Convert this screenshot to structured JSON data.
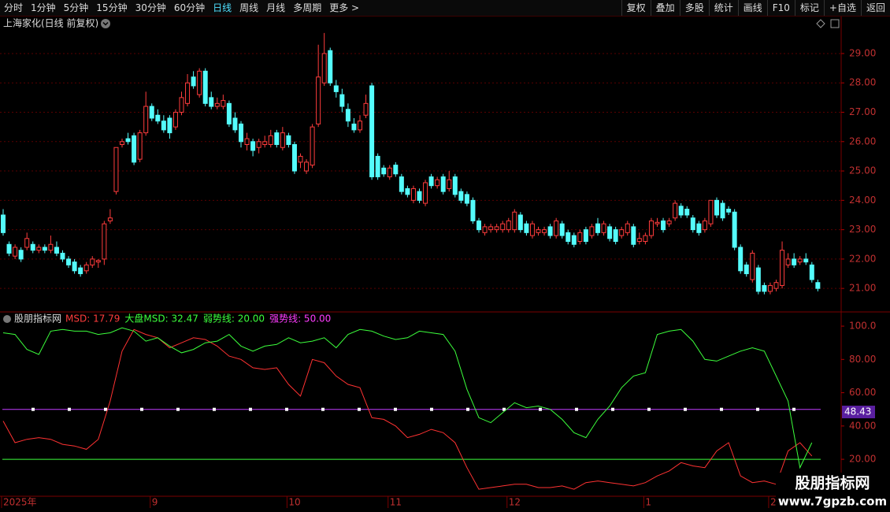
{
  "chart_data": {
    "type": "candlestick",
    "toolbar": {
      "left": [
        "分时",
        "1分钟",
        "5分钟",
        "15分钟",
        "30分钟",
        "60分钟",
        "日线",
        "周线",
        "月线",
        "多周期",
        "更多 >"
      ],
      "active_index": 6,
      "right": [
        "复权",
        "叠加",
        "多股",
        "统计",
        "画线",
        "F10",
        "标记",
        "+自选",
        "返回"
      ]
    },
    "title": "上海家化(日线 前复权)",
    "up_color": "#ff3c3c",
    "down_color": "#54fcfc",
    "ylim": [
      20.28,
      29.75
    ],
    "yticks": [
      {
        "value": 21,
        "label": "21.00"
      },
      {
        "value": 22,
        "label": "22.00"
      },
      {
        "value": 23,
        "label": "23.00"
      },
      {
        "value": 24,
        "label": "24.00"
      },
      {
        "value": 25,
        "label": "25.00"
      },
      {
        "value": 26,
        "label": "26.00"
      },
      {
        "value": 27,
        "label": "27.00"
      },
      {
        "value": 28,
        "label": "28.00"
      },
      {
        "value": 29,
        "label": "29.00"
      }
    ],
    "grid": true,
    "candles": [
      [
        23.5,
        23.7,
        22.8,
        22.9
      ],
      [
        22.5,
        22.6,
        22.1,
        22.2
      ],
      [
        22.1,
        22.5,
        22.0,
        22.4
      ],
      [
        22.3,
        22.4,
        21.9,
        22.0
      ],
      [
        22.4,
        22.9,
        22.3,
        22.7
      ],
      [
        22.5,
        22.6,
        22.2,
        22.3
      ],
      [
        22.3,
        22.5,
        22.2,
        22.4
      ],
      [
        22.4,
        22.5,
        22.2,
        22.3
      ],
      [
        22.3,
        22.8,
        22.2,
        22.5
      ],
      [
        22.4,
        22.6,
        22.1,
        22.2
      ],
      [
        22.2,
        22.3,
        21.9,
        22.0
      ],
      [
        22.0,
        22.1,
        21.7,
        21.8
      ],
      [
        21.9,
        22.0,
        21.5,
        21.6
      ],
      [
        21.7,
        21.8,
        21.4,
        21.5
      ],
      [
        21.6,
        21.9,
        21.5,
        21.8
      ],
      [
        21.8,
        22.1,
        21.7,
        22.0
      ],
      [
        21.9,
        22.0,
        21.7,
        21.95
      ],
      [
        22.0,
        23.3,
        21.8,
        23.2
      ],
      [
        23.3,
        23.7,
        23.2,
        23.4
      ],
      [
        24.3,
        25.8,
        24.2,
        25.8
      ],
      [
        25.9,
        26.1,
        25.8,
        26.0
      ],
      [
        26.1,
        26.3,
        25.9,
        26.0
      ],
      [
        26.2,
        26.3,
        25.2,
        25.3
      ],
      [
        25.4,
        26.4,
        25.3,
        26.3
      ],
      [
        26.3,
        27.7,
        26.2,
        27.2
      ],
      [
        27.2,
        27.3,
        26.7,
        26.8
      ],
      [
        26.9,
        27.1,
        26.6,
        26.7
      ],
      [
        26.7,
        26.9,
        26.3,
        26.4
      ],
      [
        26.8,
        26.9,
        26.1,
        26.3
      ],
      [
        26.5,
        27.1,
        26.4,
        27.0
      ],
      [
        27.0,
        27.7,
        26.9,
        27.5
      ],
      [
        27.3,
        28.3,
        27.2,
        28.0
      ],
      [
        28.2,
        28.4,
        27.8,
        27.9
      ],
      [
        27.6,
        28.5,
        27.5,
        28.4
      ],
      [
        28.4,
        28.5,
        27.2,
        27.3
      ],
      [
        27.5,
        27.7,
        27.1,
        27.2
      ],
      [
        27.2,
        27.5,
        27.1,
        27.3
      ],
      [
        27.2,
        27.6,
        27.1,
        27.4
      ],
      [
        27.3,
        27.4,
        26.5,
        26.6
      ],
      [
        26.8,
        27.0,
        26.3,
        26.4
      ],
      [
        26.6,
        26.7,
        25.8,
        26.0
      ],
      [
        25.9,
        26.3,
        25.7,
        26.1
      ],
      [
        26.0,
        26.1,
        25.5,
        25.7
      ],
      [
        25.8,
        26.1,
        25.6,
        26.0
      ],
      [
        25.9,
        26.2,
        25.8,
        26.0
      ],
      [
        25.9,
        26.4,
        25.8,
        26.2
      ],
      [
        26.3,
        26.4,
        25.8,
        25.9
      ],
      [
        25.8,
        26.5,
        25.7,
        26.3
      ],
      [
        26.2,
        26.3,
        25.8,
        25.9
      ],
      [
        25.9,
        26.0,
        24.9,
        25.0
      ],
      [
        25.3,
        25.6,
        25.1,
        25.5
      ],
      [
        25.0,
        25.4,
        24.9,
        25.3
      ],
      [
        25.2,
        26.6,
        25.1,
        26.5
      ],
      [
        26.6,
        29.3,
        26.5,
        28.2
      ],
      [
        28.0,
        29.7,
        27.9,
        29.0
      ],
      [
        29.1,
        29.2,
        27.9,
        28.0
      ],
      [
        27.9,
        28.1,
        27.5,
        27.7
      ],
      [
        27.6,
        27.8,
        27.0,
        27.2
      ],
      [
        27.1,
        27.3,
        26.5,
        26.7
      ],
      [
        26.6,
        26.8,
        26.3,
        26.4
      ],
      [
        26.4,
        26.9,
        26.3,
        26.7
      ],
      [
        26.9,
        27.6,
        26.8,
        27.3
      ],
      [
        27.9,
        28.0,
        24.7,
        24.8
      ],
      [
        25.5,
        25.6,
        24.7,
        24.8
      ],
      [
        25.1,
        25.2,
        24.8,
        24.9
      ],
      [
        24.8,
        25.2,
        24.7,
        25.1
      ],
      [
        25.2,
        25.3,
        24.8,
        24.9
      ],
      [
        24.8,
        24.9,
        24.2,
        24.3
      ],
      [
        24.4,
        24.5,
        24.1,
        24.2
      ],
      [
        24.0,
        24.5,
        23.9,
        24.4
      ],
      [
        24.3,
        24.4,
        23.9,
        24.0
      ],
      [
        23.9,
        24.7,
        23.8,
        24.6
      ],
      [
        24.8,
        24.9,
        24.4,
        24.5
      ],
      [
        24.5,
        24.8,
        24.4,
        24.7
      ],
      [
        24.8,
        24.9,
        24.2,
        24.3
      ],
      [
        24.4,
        25.0,
        24.3,
        24.7
      ],
      [
        24.8,
        24.9,
        24.1,
        24.2
      ],
      [
        24.3,
        24.4,
        23.9,
        24.0
      ],
      [
        24.2,
        24.3,
        23.8,
        23.9
      ],
      [
        24.0,
        24.1,
        23.2,
        23.3
      ],
      [
        23.3,
        23.4,
        22.9,
        23.0
      ],
      [
        22.9,
        23.2,
        22.8,
        23.1
      ],
      [
        23.0,
        23.2,
        22.9,
        23.1
      ],
      [
        23.0,
        23.2,
        22.9,
        23.1
      ],
      [
        23.0,
        23.3,
        22.9,
        23.2
      ],
      [
        23.0,
        23.4,
        22.9,
        23.3
      ],
      [
        23.0,
        23.7,
        22.9,
        23.6
      ],
      [
        23.5,
        23.6,
        22.9,
        23.0
      ],
      [
        23.2,
        23.3,
        22.8,
        22.9
      ],
      [
        22.8,
        23.3,
        22.7,
        23.2
      ],
      [
        22.9,
        23.1,
        22.8,
        23.0
      ],
      [
        22.9,
        23.1,
        22.8,
        23.0
      ],
      [
        23.1,
        23.2,
        22.7,
        22.8
      ],
      [
        22.8,
        23.4,
        22.7,
        23.3
      ],
      [
        23.2,
        23.3,
        22.7,
        22.8
      ],
      [
        22.9,
        23.0,
        22.5,
        22.6
      ],
      [
        22.8,
        22.9,
        22.4,
        22.5
      ],
      [
        22.6,
        23.0,
        22.5,
        22.9
      ],
      [
        23.0,
        23.1,
        22.5,
        22.6
      ],
      [
        22.8,
        23.2,
        22.7,
        23.1
      ],
      [
        23.2,
        23.4,
        22.8,
        22.9
      ],
      [
        22.9,
        23.3,
        22.8,
        23.2
      ],
      [
        23.1,
        23.2,
        22.6,
        22.7
      ],
      [
        23.0,
        23.1,
        22.5,
        22.6
      ],
      [
        22.8,
        23.1,
        22.7,
        23.0
      ],
      [
        22.9,
        23.3,
        22.8,
        23.2
      ],
      [
        23.1,
        23.2,
        22.4,
        22.5
      ],
      [
        22.6,
        22.9,
        22.5,
        22.7
      ],
      [
        22.6,
        22.9,
        22.5,
        22.8
      ],
      [
        22.8,
        23.4,
        22.7,
        23.3
      ],
      [
        23.2,
        23.4,
        23.1,
        23.25
      ],
      [
        23.3,
        23.4,
        22.9,
        23.0
      ],
      [
        23.2,
        23.4,
        23.1,
        23.3
      ],
      [
        23.4,
        24.0,
        23.3,
        23.9
      ],
      [
        23.8,
        23.9,
        23.4,
        23.5
      ],
      [
        23.7,
        23.8,
        23.4,
        23.5
      ],
      [
        23.4,
        23.5,
        22.9,
        23.0
      ],
      [
        23.2,
        23.3,
        22.8,
        22.9
      ],
      [
        23.0,
        23.4,
        22.9,
        23.3
      ],
      [
        23.2,
        24.0,
        23.1,
        24.0
      ],
      [
        24.0,
        24.1,
        23.4,
        23.5
      ],
      [
        23.9,
        24.0,
        23.3,
        23.4
      ],
      [
        23.7,
        23.8,
        23.5,
        23.6
      ],
      [
        23.6,
        23.7,
        22.3,
        22.4
      ],
      [
        22.4,
        22.5,
        21.5,
        21.6
      ],
      [
        21.8,
        21.9,
        21.4,
        21.5
      ],
      [
        21.3,
        22.3,
        21.2,
        22.2
      ],
      [
        21.7,
        21.8,
        20.8,
        20.9
      ],
      [
        21.1,
        21.2,
        20.8,
        20.9
      ],
      [
        20.9,
        21.2,
        20.8,
        21.1
      ],
      [
        21.0,
        21.3,
        20.9,
        21.2
      ],
      [
        21.1,
        22.6,
        21.0,
        22.3
      ],
      [
        21.8,
        22.2,
        21.7,
        22.0
      ],
      [
        22.0,
        22.2,
        21.7,
        21.8
      ],
      [
        21.9,
        22.1,
        21.8,
        22.0
      ],
      [
        22.0,
        22.2,
        21.8,
        21.9
      ],
      [
        21.8,
        21.9,
        21.2,
        21.3
      ],
      [
        21.2,
        21.3,
        20.9,
        21.0
      ]
    ],
    "indicator": {
      "name": "股朋指标网",
      "legend": [
        {
          "text": "MSD: 17.79",
          "color": "#ff3c3c"
        },
        {
          "text": "大盘MSD: 32.47",
          "color": "#3cff3c"
        },
        {
          "text": "弱势线: 20.00",
          "color": "#3cff3c"
        },
        {
          "text": "强势线: 50.00",
          "color": "#ff3cff"
        }
      ],
      "ylim": [
        -2.2,
        107.6
      ],
      "yticks": [
        {
          "value": 20,
          "label": "20.00"
        },
        {
          "value": 40,
          "label": "40.00"
        },
        {
          "value": 60,
          "label": "60.00"
        },
        {
          "value": 80,
          "label": "80.00"
        },
        {
          "value": 100,
          "label": "100.0"
        }
      ],
      "last_label": {
        "value": 48.43,
        "color": "#5a1fa0"
      },
      "series": [
        {
          "name": "MSD",
          "color": "#ff3232",
          "values": [
            43,
            30,
            32,
            33,
            32,
            29,
            28,
            26,
            32,
            55,
            85,
            98,
            95,
            93,
            87,
            90,
            93,
            92,
            88,
            82,
            80,
            75,
            74,
            75,
            65,
            58,
            80,
            78,
            70,
            65,
            63,
            45,
            44,
            40,
            33,
            35,
            38,
            36,
            30,
            15,
            2,
            3,
            4,
            5,
            5,
            3,
            3,
            4,
            2,
            6,
            7,
            6,
            5,
            4,
            6,
            10,
            13,
            18,
            16,
            15,
            25,
            30,
            10,
            6,
            7,
            5,
            25,
            30,
            22
          ]
        },
        {
          "name": "大盘MSD",
          "color": "#3cff3c",
          "values": [
            96,
            95,
            86,
            83,
            97,
            98,
            97,
            97,
            95,
            96,
            99,
            97,
            91,
            93,
            88,
            84,
            86,
            90,
            91,
            95,
            88,
            85,
            88,
            89,
            93,
            90,
            91,
            93,
            87,
            95,
            98,
            97,
            94,
            92,
            93,
            97,
            96,
            95,
            85,
            62,
            45,
            42,
            48,
            54,
            51,
            52,
            50,
            44,
            36,
            33,
            44,
            52,
            63,
            70,
            72,
            95,
            97,
            98,
            91,
            80,
            79,
            82,
            85,
            87,
            85,
            70,
            55,
            15,
            30
          ]
        }
      ],
      "weak_line": {
        "value": 20,
        "color": "#3cff3c"
      },
      "strong_line": {
        "value": 50,
        "color": "#c23cff"
      }
    },
    "date_axis": {
      "labels": [
        "2025年",
        "9",
        "10",
        "11",
        "12",
        "1",
        "2"
      ],
      "at_candle": [
        0,
        25,
        48,
        65,
        85,
        108,
        129
      ]
    },
    "watermark": {
      "name": "股朋指标网",
      "url": "www.7gpzb.com"
    }
  }
}
